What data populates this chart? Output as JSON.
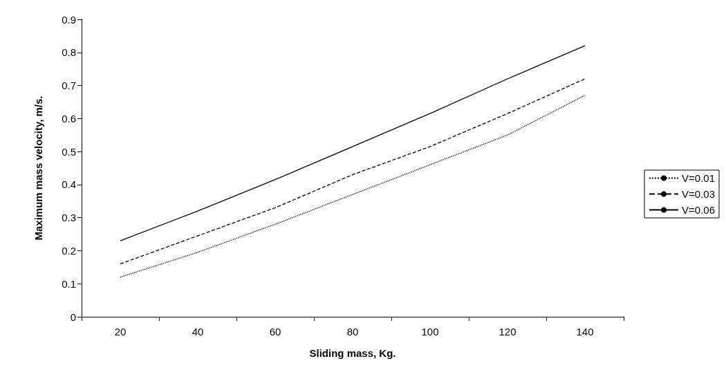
{
  "chart_data": {
    "type": "line",
    "xlabel": "Sliding mass, Kg.",
    "ylabel": "Maximum mass velocity, m/s.",
    "categories": [
      "20",
      "40",
      "60",
      "80",
      "100",
      "120",
      "140"
    ],
    "series": [
      {
        "name": "V=0.01",
        "color": "#000000",
        "line_style": "dotted",
        "values": [
          0.12,
          0.195,
          0.28,
          0.37,
          0.46,
          0.55,
          0.67
        ]
      },
      {
        "name": "V=0.03",
        "color": "#000000",
        "line_style": "dashed",
        "values": [
          0.16,
          0.245,
          0.33,
          0.43,
          0.515,
          0.615,
          0.72
        ]
      },
      {
        "name": "V=0.06",
        "color": "#000000",
        "line_style": "solid",
        "values": [
          0.23,
          0.32,
          0.415,
          0.515,
          0.615,
          0.72,
          0.82
        ]
      }
    ],
    "ylim": [
      0,
      0.9
    ],
    "yticks": [
      0,
      0.1,
      0.2,
      0.3,
      0.4,
      0.5,
      0.6,
      0.7,
      0.8,
      0.9
    ],
    "grid": false,
    "legend": "right",
    "marker": "none"
  }
}
